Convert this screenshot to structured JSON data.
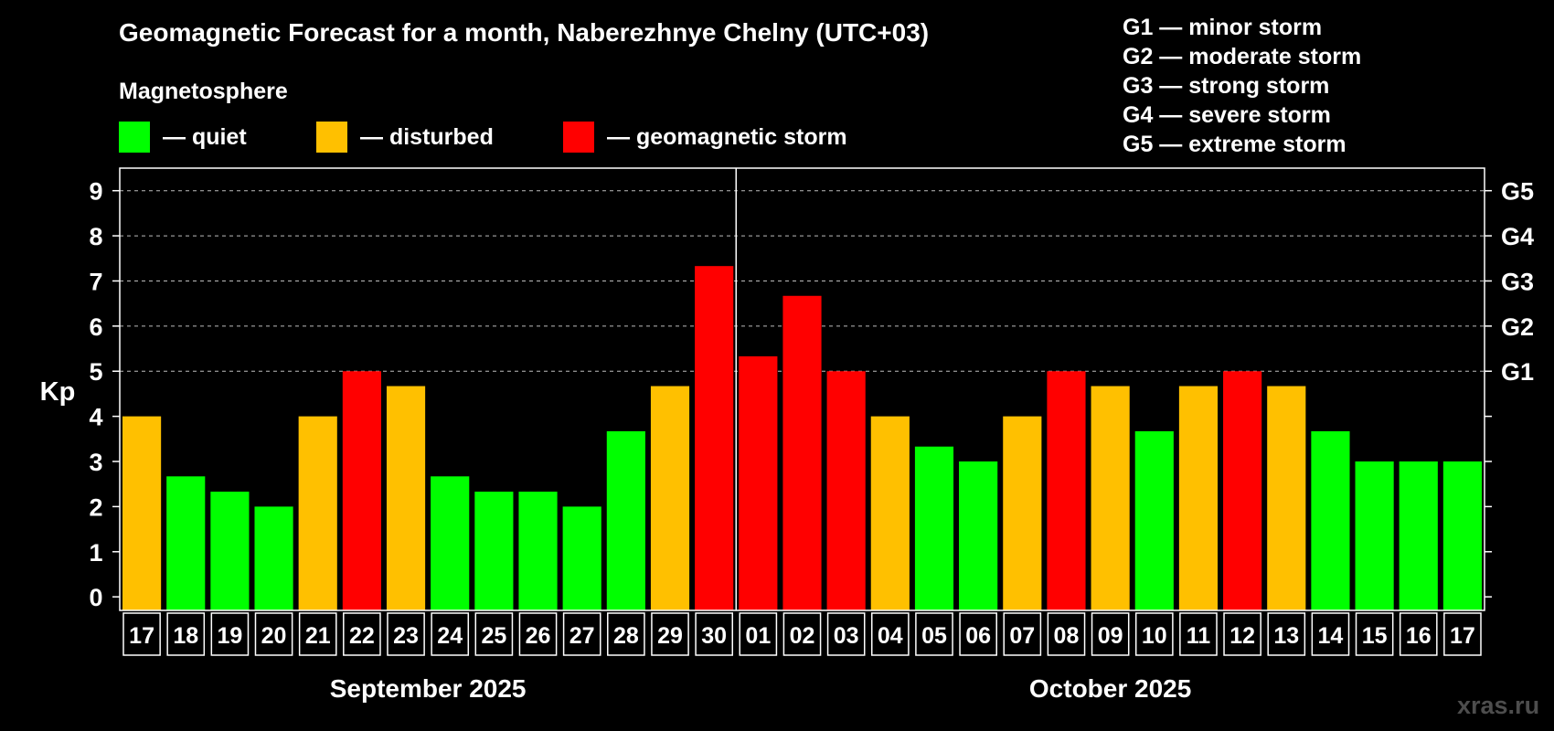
{
  "title": "Geomagnetic Forecast for a month, Naberezhnye Chelny (UTC+03)",
  "subtitle": "Magnetosphere",
  "legend": [
    {
      "label": "— quiet",
      "color": "#00ff00"
    },
    {
      "label": "— disturbed",
      "color": "#ffc000"
    },
    {
      "label": "— geomagnetic storm",
      "color": "#ff0000"
    }
  ],
  "g_scale": [
    "G1 — minor storm",
    "G2 — moderate storm",
    "G3 — strong storm",
    "G4 — severe storm",
    "G5 — extreme storm"
  ],
  "watermark": "xras.ru",
  "chart_data": {
    "type": "bar",
    "ylabel": "Kp",
    "ylim": [
      0,
      9
    ],
    "yticks": [
      "0",
      "1",
      "2",
      "3",
      "4",
      "5",
      "6",
      "7",
      "8",
      "9"
    ],
    "right_axis_labels": [
      {
        "value": 5,
        "label": "G1"
      },
      {
        "value": 6,
        "label": "G2"
      },
      {
        "value": 7,
        "label": "G3"
      },
      {
        "value": 8,
        "label": "G4"
      },
      {
        "value": 9,
        "label": "G5"
      }
    ],
    "grid": "dashed at 6, 7, 8, 9",
    "months": [
      {
        "label": "September 2025",
        "day_count": 14
      },
      {
        "label": "October 2025",
        "day_count": 17
      }
    ],
    "categories": [
      "17",
      "18",
      "19",
      "20",
      "21",
      "22",
      "23",
      "24",
      "25",
      "26",
      "27",
      "28",
      "29",
      "30",
      "01",
      "02",
      "03",
      "04",
      "05",
      "06",
      "07",
      "08",
      "09",
      "10",
      "11",
      "12",
      "13",
      "14",
      "15",
      "16",
      "17"
    ],
    "values": [
      4.0,
      2.67,
      2.33,
      2.0,
      4.0,
      5.0,
      4.67,
      2.67,
      2.33,
      2.33,
      2.0,
      3.67,
      4.67,
      7.33,
      5.33,
      6.67,
      5.0,
      4.0,
      3.33,
      3.0,
      4.0,
      5.0,
      4.67,
      3.67,
      4.67,
      5.0,
      4.67,
      3.67,
      3.0,
      3.0,
      3.0
    ],
    "status": [
      "disturbed",
      "quiet",
      "quiet",
      "quiet",
      "disturbed",
      "storm",
      "disturbed",
      "quiet",
      "quiet",
      "quiet",
      "quiet",
      "quiet",
      "disturbed",
      "storm",
      "storm",
      "storm",
      "storm",
      "disturbed",
      "quiet",
      "quiet",
      "disturbed",
      "storm",
      "disturbed",
      "quiet",
      "disturbed",
      "storm",
      "disturbed",
      "quiet",
      "quiet",
      "quiet",
      "quiet"
    ],
    "colors": {
      "quiet": "#00ff00",
      "disturbed": "#ffc000",
      "storm": "#ff0000"
    }
  }
}
